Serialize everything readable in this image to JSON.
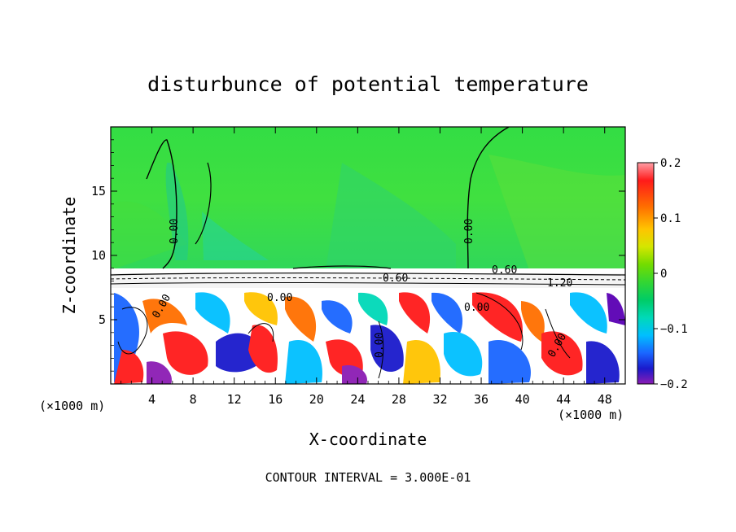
{
  "chart_data": {
    "type": "heatmap",
    "title": "disturbunce of potential temperature",
    "xlabel": "X-coordinate",
    "ylabel": "Z-coordinate",
    "x_unit": "(×1000 m)",
    "x_ticks": [
      4,
      8,
      12,
      16,
      20,
      24,
      28,
      32,
      36,
      40,
      44,
      48
    ],
    "y_ticks": [
      5,
      10,
      15
    ],
    "xlim": [
      0,
      50
    ],
    "ylim": [
      0,
      20
    ],
    "colorbar": {
      "range": [
        -0.2,
        0.2
      ],
      "tick_values": [
        0.2,
        0.1,
        0,
        -0.1,
        -0.2
      ],
      "tick_labels": [
        "0.2",
        "0.1",
        "0",
        "−0.1",
        "−0.2"
      ],
      "colors": [
        "#ff9ea6",
        "#ff1a1a",
        "#ff6f00",
        "#ffc400",
        "#d4e600",
        "#73dc00",
        "#33d633",
        "#00cc66",
        "#00d9b8",
        "#00bfff",
        "#1a66ff",
        "#1a1acc",
        "#5a00b4",
        "#8c1cb4"
      ]
    },
    "contour_labels": [
      "0.00",
      "0.00",
      "0.00",
      "0.00",
      "0.60",
      "1.20",
      "0.60",
      "0.00",
      "0.00",
      "0.00"
    ],
    "footer": "CONTOUR INTERVAL = 3.000E-01"
  }
}
